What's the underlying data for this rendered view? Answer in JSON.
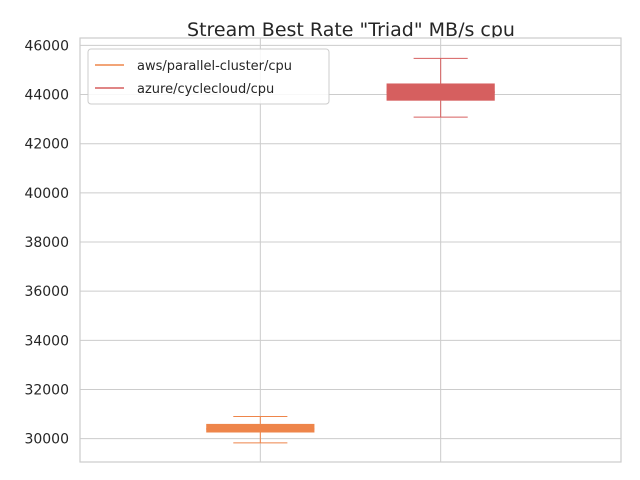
{
  "chart_data": {
    "type": "box",
    "title": "Stream Best Rate \"Triad\" MB/s cpu",
    "xlabel": "",
    "ylabel": "",
    "ylim": [
      29050,
      46300
    ],
    "yticks": [
      30000,
      32000,
      34000,
      36000,
      38000,
      40000,
      42000,
      44000,
      46000
    ],
    "grid": true,
    "legend_position": "top-left",
    "series": [
      {
        "name": "aws/parallel-cluster/cpu",
        "color": "#ee854a",
        "whisker_low": 29830,
        "q1": 30250,
        "median": 30400,
        "q3": 30600,
        "whisker_high": 30900
      },
      {
        "name": "azure/cyclecloud/cpu",
        "color": "#d65f5f",
        "whisker_low": 43080,
        "q1": 43750,
        "median": 44100,
        "q3": 44450,
        "whisker_high": 45470
      }
    ]
  }
}
